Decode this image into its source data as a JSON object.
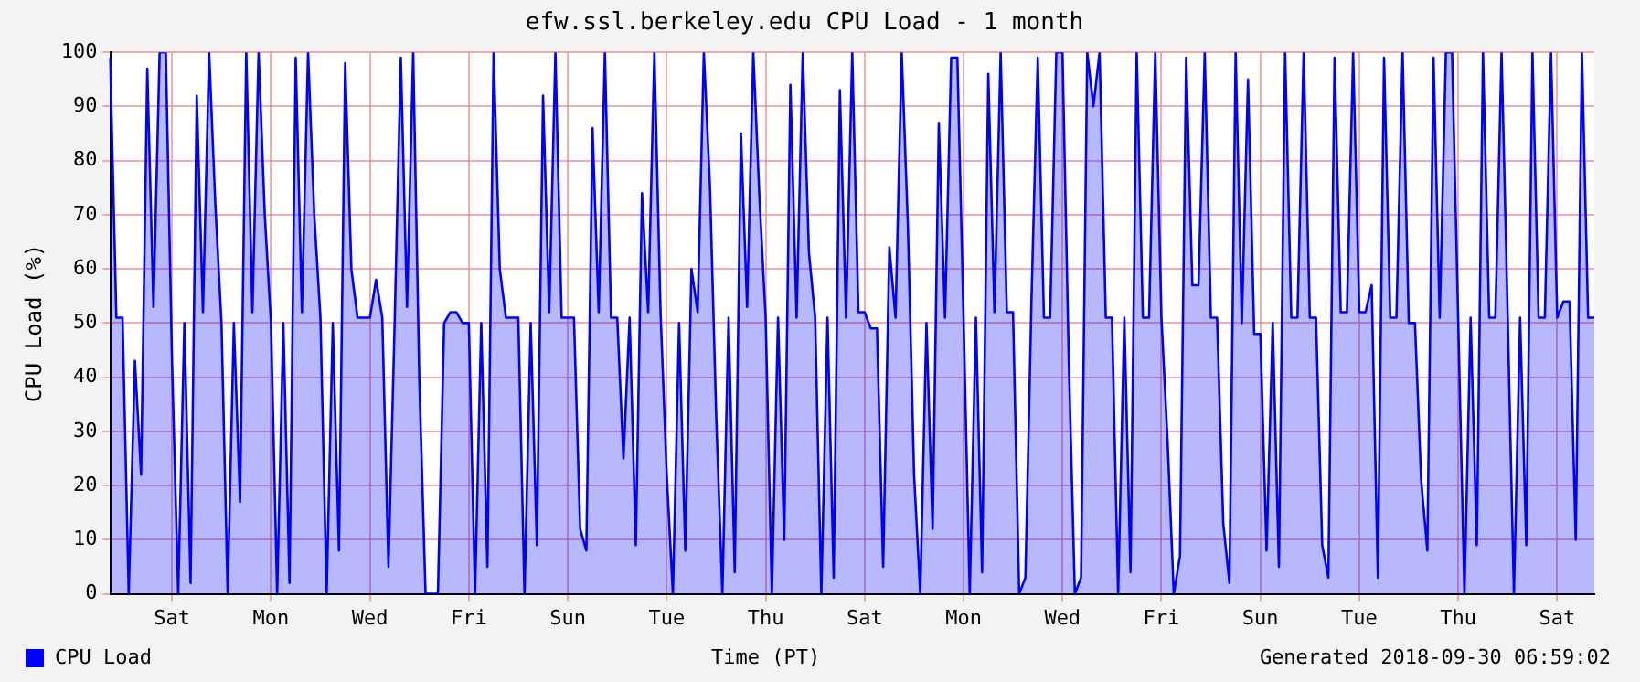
{
  "chart_data": {
    "type": "area",
    "title": "efw.ssl.berkeley.edu CPU Load - 1 month",
    "xlabel": "Time (PT)",
    "ylabel": "CPU Load (%)",
    "annotations": [
      "Generated 2018-09-30 06:59:02"
    ],
    "legend": "bottom left",
    "grid": true,
    "marker": "none",
    "line_style": "solid",
    "ylim": [
      0,
      100
    ],
    "yticks": [
      0,
      10,
      20,
      30,
      40,
      50,
      60,
      70,
      80,
      90,
      100
    ],
    "categories": [
      null,
      null,
      null,
      null,
      null,
      null,
      null,
      null,
      null,
      null,
      "Sat",
      null,
      null,
      null,
      null,
      null,
      null,
      null,
      null,
      null,
      null,
      null,
      null,
      null,
      null,
      null,
      "Mon",
      null,
      null,
      null,
      null,
      null,
      null,
      null,
      null,
      null,
      null,
      null,
      null,
      null,
      null,
      null,
      "Wed",
      null,
      null,
      null,
      null,
      null,
      null,
      null,
      null,
      null,
      null,
      null,
      null,
      null,
      null,
      null,
      "Fri",
      null,
      null,
      null,
      null,
      null,
      null,
      null,
      null,
      null,
      null,
      null,
      null,
      null,
      null,
      null,
      "Sun",
      null,
      null,
      null,
      null,
      null,
      null,
      null,
      null,
      null,
      null,
      null,
      null,
      null,
      null,
      null,
      "Tue",
      null,
      null,
      null,
      null,
      null,
      null,
      null,
      null,
      null,
      null,
      null,
      null,
      null,
      null,
      null,
      "Thu",
      null,
      null,
      null,
      null,
      null,
      null,
      null,
      null,
      null,
      null,
      null,
      null,
      null,
      null,
      null,
      "Sat",
      null,
      null,
      null,
      null,
      null,
      null,
      null,
      null,
      null,
      null,
      null,
      null,
      null,
      null,
      null,
      "Mon",
      null,
      null,
      null,
      null,
      null,
      null,
      null,
      null,
      null,
      null,
      null,
      null,
      null,
      null,
      null,
      "Wed",
      null,
      null,
      null,
      null,
      null,
      null,
      null,
      null,
      null,
      null,
      null,
      null,
      null,
      null,
      null,
      "Fri",
      null,
      null,
      null,
      null,
      null,
      null,
      null,
      null,
      null,
      null,
      null,
      null,
      null,
      null,
      null,
      "Sun",
      null,
      null,
      null,
      null,
      null,
      null,
      null,
      null,
      null,
      null,
      null,
      null,
      null,
      null,
      null,
      "Tue",
      null,
      null,
      null,
      null,
      null,
      null,
      null,
      null,
      null,
      null,
      null,
      null,
      null,
      null,
      null,
      "Thu",
      null,
      null,
      null,
      null,
      null,
      null,
      null,
      null,
      null,
      null,
      null,
      null,
      null,
      null,
      null,
      "Sat",
      null,
      null,
      null,
      null,
      null,
      null
    ],
    "series": [
      {
        "name": "CPU Load",
        "color": "#0000ff",
        "values": [
          99,
          51,
          51,
          0,
          43,
          22,
          97,
          53,
          100,
          100,
          43,
          0,
          50,
          2,
          92,
          52,
          100,
          72,
          50,
          0,
          50,
          17,
          100,
          52,
          100,
          70,
          50,
          0,
          50,
          2,
          99,
          52,
          100,
          70,
          51,
          0,
          50,
          8,
          98,
          60,
          51,
          51,
          51,
          58,
          51,
          5,
          50,
          99,
          53,
          100,
          39,
          0,
          0,
          0,
          50,
          52,
          52,
          50,
          50,
          0,
          50,
          5,
          100,
          60,
          51,
          51,
          51,
          0,
          50,
          9,
          92,
          52,
          100,
          51,
          51,
          51,
          12,
          8,
          86,
          52,
          100,
          51,
          51,
          25,
          51,
          9,
          74,
          52,
          100,
          52,
          22,
          0,
          50,
          8,
          60,
          52,
          100,
          75,
          33,
          0,
          51,
          4,
          85,
          53,
          100,
          73,
          51,
          0,
          51,
          10,
          94,
          51,
          100,
          63,
          51,
          0,
          51,
          3,
          93,
          51,
          100,
          52,
          52,
          49,
          49,
          5,
          64,
          51,
          100,
          68,
          22,
          0,
          50,
          12,
          87,
          51,
          99,
          99,
          51,
          0,
          51,
          4,
          96,
          52,
          100,
          52,
          52,
          0,
          3,
          55,
          99,
          51,
          51,
          100,
          100,
          44,
          0,
          3,
          100,
          90,
          100,
          51,
          51,
          0,
          51,
          4,
          100,
          51,
          51,
          100,
          51,
          28,
          0,
          7,
          99,
          57,
          57,
          100,
          51,
          51,
          13,
          2,
          100,
          50,
          95,
          48,
          48,
          8,
          50,
          5,
          100,
          51,
          51,
          100,
          51,
          51,
          9,
          3,
          99,
          52,
          52,
          100,
          52,
          52,
          57,
          3,
          99,
          51,
          51,
          100,
          50,
          50,
          21,
          8,
          99,
          51,
          100,
          100,
          50,
          0,
          51,
          9,
          100,
          51,
          51,
          100,
          51,
          0,
          51,
          9,
          100,
          51,
          51,
          100,
          51,
          54,
          54,
          10,
          100,
          51,
          51
        ]
      }
    ]
  }
}
